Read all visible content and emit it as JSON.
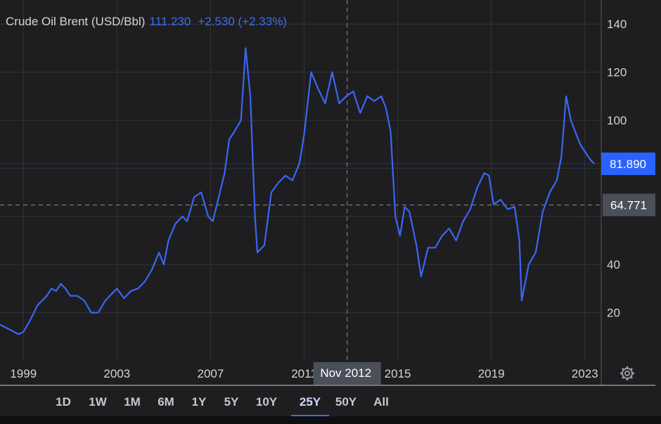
{
  "legend": {
    "name": "Crude Oil Brent (USD/Bbl)",
    "value": "111.230",
    "change": "+2.530 (+2.33%)"
  },
  "crosshair": {
    "date_label": "Nov 2012",
    "price_label": "64.771",
    "price": 64.771,
    "date": 2012.84
  },
  "last_price": {
    "label": "81.890",
    "value": 81.89
  },
  "periods": [
    "1D",
    "1W",
    "1M",
    "6M",
    "1Y",
    "5Y",
    "10Y",
    "25Y",
    "50Y",
    "All"
  ],
  "active_period": "25Y",
  "settings_icon": "gear-icon",
  "colors": {
    "background": "#1e1e20",
    "line": "#3a66f5",
    "last_price_tag": "#2962ff",
    "crosshair_tag": "#4a4f5a",
    "grid": "#333336",
    "text": "#d4d4d4"
  },
  "chart_data": {
    "type": "line",
    "title": "Crude Oil Brent (USD/Bbl)",
    "xlabel": "",
    "ylabel": "",
    "y_ticks": [
      20,
      40,
      100,
      120,
      140
    ],
    "x_tick_labels": [
      "1999",
      "2003",
      "2007",
      "2011",
      "2015",
      "2019",
      "2023"
    ],
    "x_ticks": [
      1999,
      2003,
      2007,
      2011,
      2015,
      2019,
      2023
    ],
    "xlim": [
      1998.0,
      2023.7
    ],
    "ylim": [
      0,
      150
    ],
    "grid": true,
    "series": [
      {
        "name": "Crude Oil Brent (USD/Bbl)",
        "x": [
          1998.0,
          1998.2,
          1998.4,
          1998.6,
          1998.8,
          1999.0,
          1999.3,
          1999.6,
          1999.8,
          2000.0,
          2000.2,
          2000.4,
          2000.6,
          2000.8,
          2001.0,
          2001.3,
          2001.6,
          2001.9,
          2002.2,
          2002.5,
          2002.8,
          2003.0,
          2003.3,
          2003.6,
          2003.9,
          2004.2,
          2004.5,
          2004.8,
          2005.0,
          2005.2,
          2005.5,
          2005.8,
          2006.0,
          2006.3,
          2006.6,
          2006.9,
          2007.1,
          2007.4,
          2007.6,
          2007.8,
          2008.0,
          2008.3,
          2008.5,
          2008.7,
          2008.9,
          2009.0,
          2009.3,
          2009.6,
          2009.9,
          2010.2,
          2010.5,
          2010.8,
          2011.0,
          2011.3,
          2011.6,
          2011.9,
          2012.2,
          2012.5,
          2012.8,
          2013.1,
          2013.4,
          2013.7,
          2014.0,
          2014.3,
          2014.5,
          2014.7,
          2014.9,
          2015.1,
          2015.3,
          2015.5,
          2015.8,
          2016.0,
          2016.3,
          2016.6,
          2016.9,
          2017.2,
          2017.5,
          2017.8,
          2018.1,
          2018.4,
          2018.7,
          2018.9,
          2019.1,
          2019.4,
          2019.7,
          2020.0,
          2020.2,
          2020.3,
          2020.6,
          2020.9,
          2021.2,
          2021.5,
          2021.8,
          2022.0,
          2022.2,
          2022.4,
          2022.6,
          2022.8,
          2023.0,
          2023.2,
          2023.4
        ],
        "values": [
          15,
          14,
          13,
          12,
          11,
          12,
          17,
          23,
          25,
          27,
          30,
          29,
          32,
          30,
          27,
          27,
          25,
          20,
          20,
          25,
          28,
          30,
          26,
          29,
          30,
          33,
          38,
          45,
          40,
          50,
          57,
          60,
          58,
          68,
          70,
          60,
          58,
          70,
          78,
          92,
          95,
          100,
          130,
          110,
          60,
          45,
          48,
          70,
          74,
          77,
          75,
          82,
          94,
          120,
          113,
          107,
          120,
          107,
          110,
          112,
          103,
          110,
          108,
          110,
          105,
          95,
          60,
          52,
          64,
          62,
          48,
          35,
          47,
          47,
          52,
          55,
          50,
          58,
          63,
          72,
          78,
          77,
          65,
          67,
          63,
          64,
          50,
          25,
          40,
          45,
          62,
          70,
          75,
          85,
          110,
          100,
          95,
          90,
          87,
          84,
          81.89
        ]
      }
    ]
  }
}
